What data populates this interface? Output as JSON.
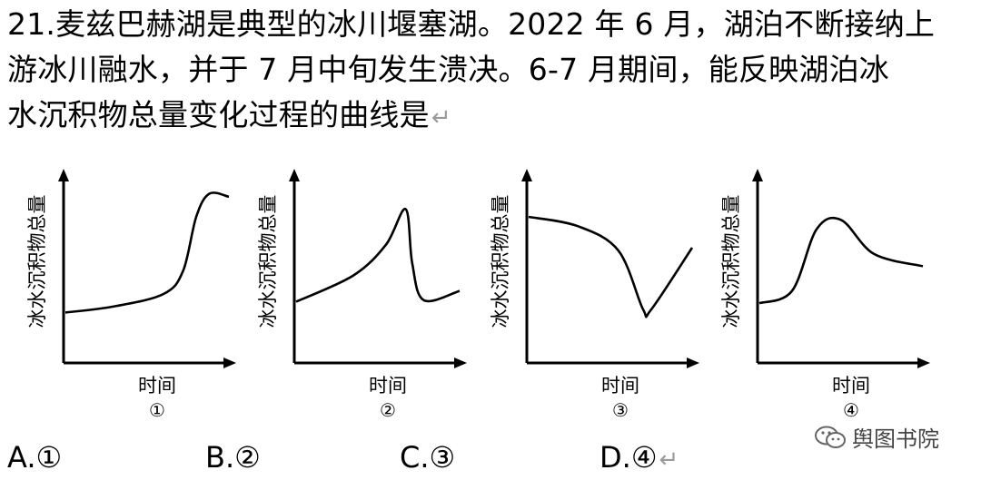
{
  "question": {
    "lines": [
      "21.麦兹巴赫湖是典型的冰川堰塞湖。2022 年 6 月，湖泊不断接纳上",
      "游冰川融水，并于 7 月中旬发生溃决。6-7 月期间，能反映湖泊冰",
      "水沉积物总量变化过程的曲线是"
    ],
    "return_mark": "↵"
  },
  "chart_data": [
    {
      "type": "line",
      "ylabel": "冰水沉积物总量",
      "xlabel": "时间",
      "label": "①",
      "series": [
        {
          "values": [
            [
              0,
              0.18
            ],
            [
              0.3,
              0.22
            ],
            [
              0.6,
              0.3
            ],
            [
              0.72,
              0.45
            ],
            [
              0.8,
              0.8
            ],
            [
              0.88,
              0.95
            ],
            [
              1.0,
              0.93
            ]
          ]
        }
      ]
    },
    {
      "type": "line",
      "ylabel": "冰水沉积物总量",
      "xlabel": "时间",
      "label": "②",
      "series": [
        {
          "values": [
            [
              0,
              0.25
            ],
            [
              0.35,
              0.42
            ],
            [
              0.55,
              0.62
            ],
            [
              0.67,
              0.85
            ],
            [
              0.71,
              0.5
            ],
            [
              0.78,
              0.26
            ],
            [
              1.0,
              0.32
            ]
          ]
        }
      ]
    },
    {
      "type": "line",
      "ylabel": "冰水沉积物总量",
      "xlabel": "时间",
      "label": "③",
      "series": [
        {
          "values": [
            [
              0,
              0.8
            ],
            [
              0.3,
              0.74
            ],
            [
              0.55,
              0.58
            ],
            [
              0.7,
              0.2
            ],
            [
              0.75,
              0.2
            ],
            [
              1.0,
              0.6
            ]
          ]
        }
      ]
    },
    {
      "type": "line",
      "ylabel": "冰水沉积物总量",
      "xlabel": "时间",
      "label": "④",
      "series": [
        {
          "values": [
            [
              0,
              0.24
            ],
            [
              0.2,
              0.32
            ],
            [
              0.35,
              0.72
            ],
            [
              0.5,
              0.78
            ],
            [
              0.7,
              0.56
            ],
            [
              1.0,
              0.48
            ]
          ]
        }
      ]
    }
  ],
  "options": [
    "A.①",
    "B.②",
    "C.③",
    "D.④"
  ],
  "options_return_mark": "↵",
  "watermark": "舆图书院",
  "watermark_icon": "wechat-icon"
}
